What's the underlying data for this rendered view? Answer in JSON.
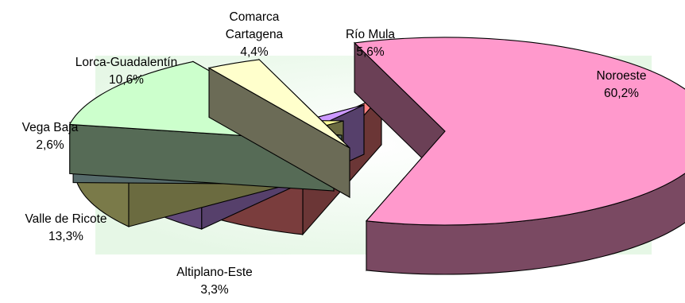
{
  "chart_data": {
    "type": "pie",
    "style": "3d-exploded",
    "slices": [
      {
        "name": "Noroeste",
        "value": 60.2,
        "label": "60,2%",
        "color": "#FF99CC"
      },
      {
        "name": "Altiplano-Este",
        "value": 3.3,
        "label": "3,3%",
        "color": "#FFFFCC"
      },
      {
        "name": "Valle de Ricote",
        "value": 13.3,
        "label": "13,3%",
        "color": "#CCFFCC"
      },
      {
        "name": "Vega Baja",
        "value": 2.6,
        "label": "2,6%",
        "color": "#CCFFFF"
      },
      {
        "name": "Lorca-Guadalentín",
        "value": 10.6,
        "label": "10,6%",
        "color": "#FFFF99"
      },
      {
        "name": "Comarca Cartagena",
        "value": 4.4,
        "label": "4,4%",
        "color": "#CC99FF"
      },
      {
        "name": "Río Mula",
        "value": 5.6,
        "label": "5,6%",
        "color": "#FF8080"
      }
    ]
  }
}
